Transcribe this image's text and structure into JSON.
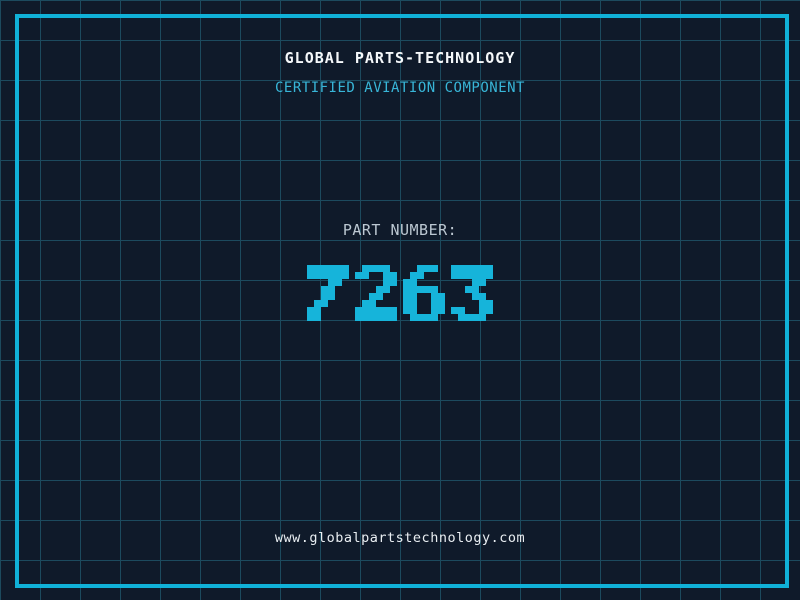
{
  "header": {
    "title": "GLOBAL PARTS-TECHNOLOGY",
    "subtitle": "CERTIFIED AVIATION COMPONENT"
  },
  "part": {
    "label": "PART NUMBER:",
    "number": "7263"
  },
  "footer": {
    "url": "www.globalpartstechnology.com"
  },
  "colors": {
    "background": "#0f1a2a",
    "grid_line": "#1c4a5e",
    "frame": "#10b1d8",
    "digit_cyan": "#16b4da",
    "accent_cyan": "#38b6d8",
    "title_white": "#f5f8fa",
    "label_gray": "#bcc8d2",
    "url_white": "#e9eef2"
  }
}
